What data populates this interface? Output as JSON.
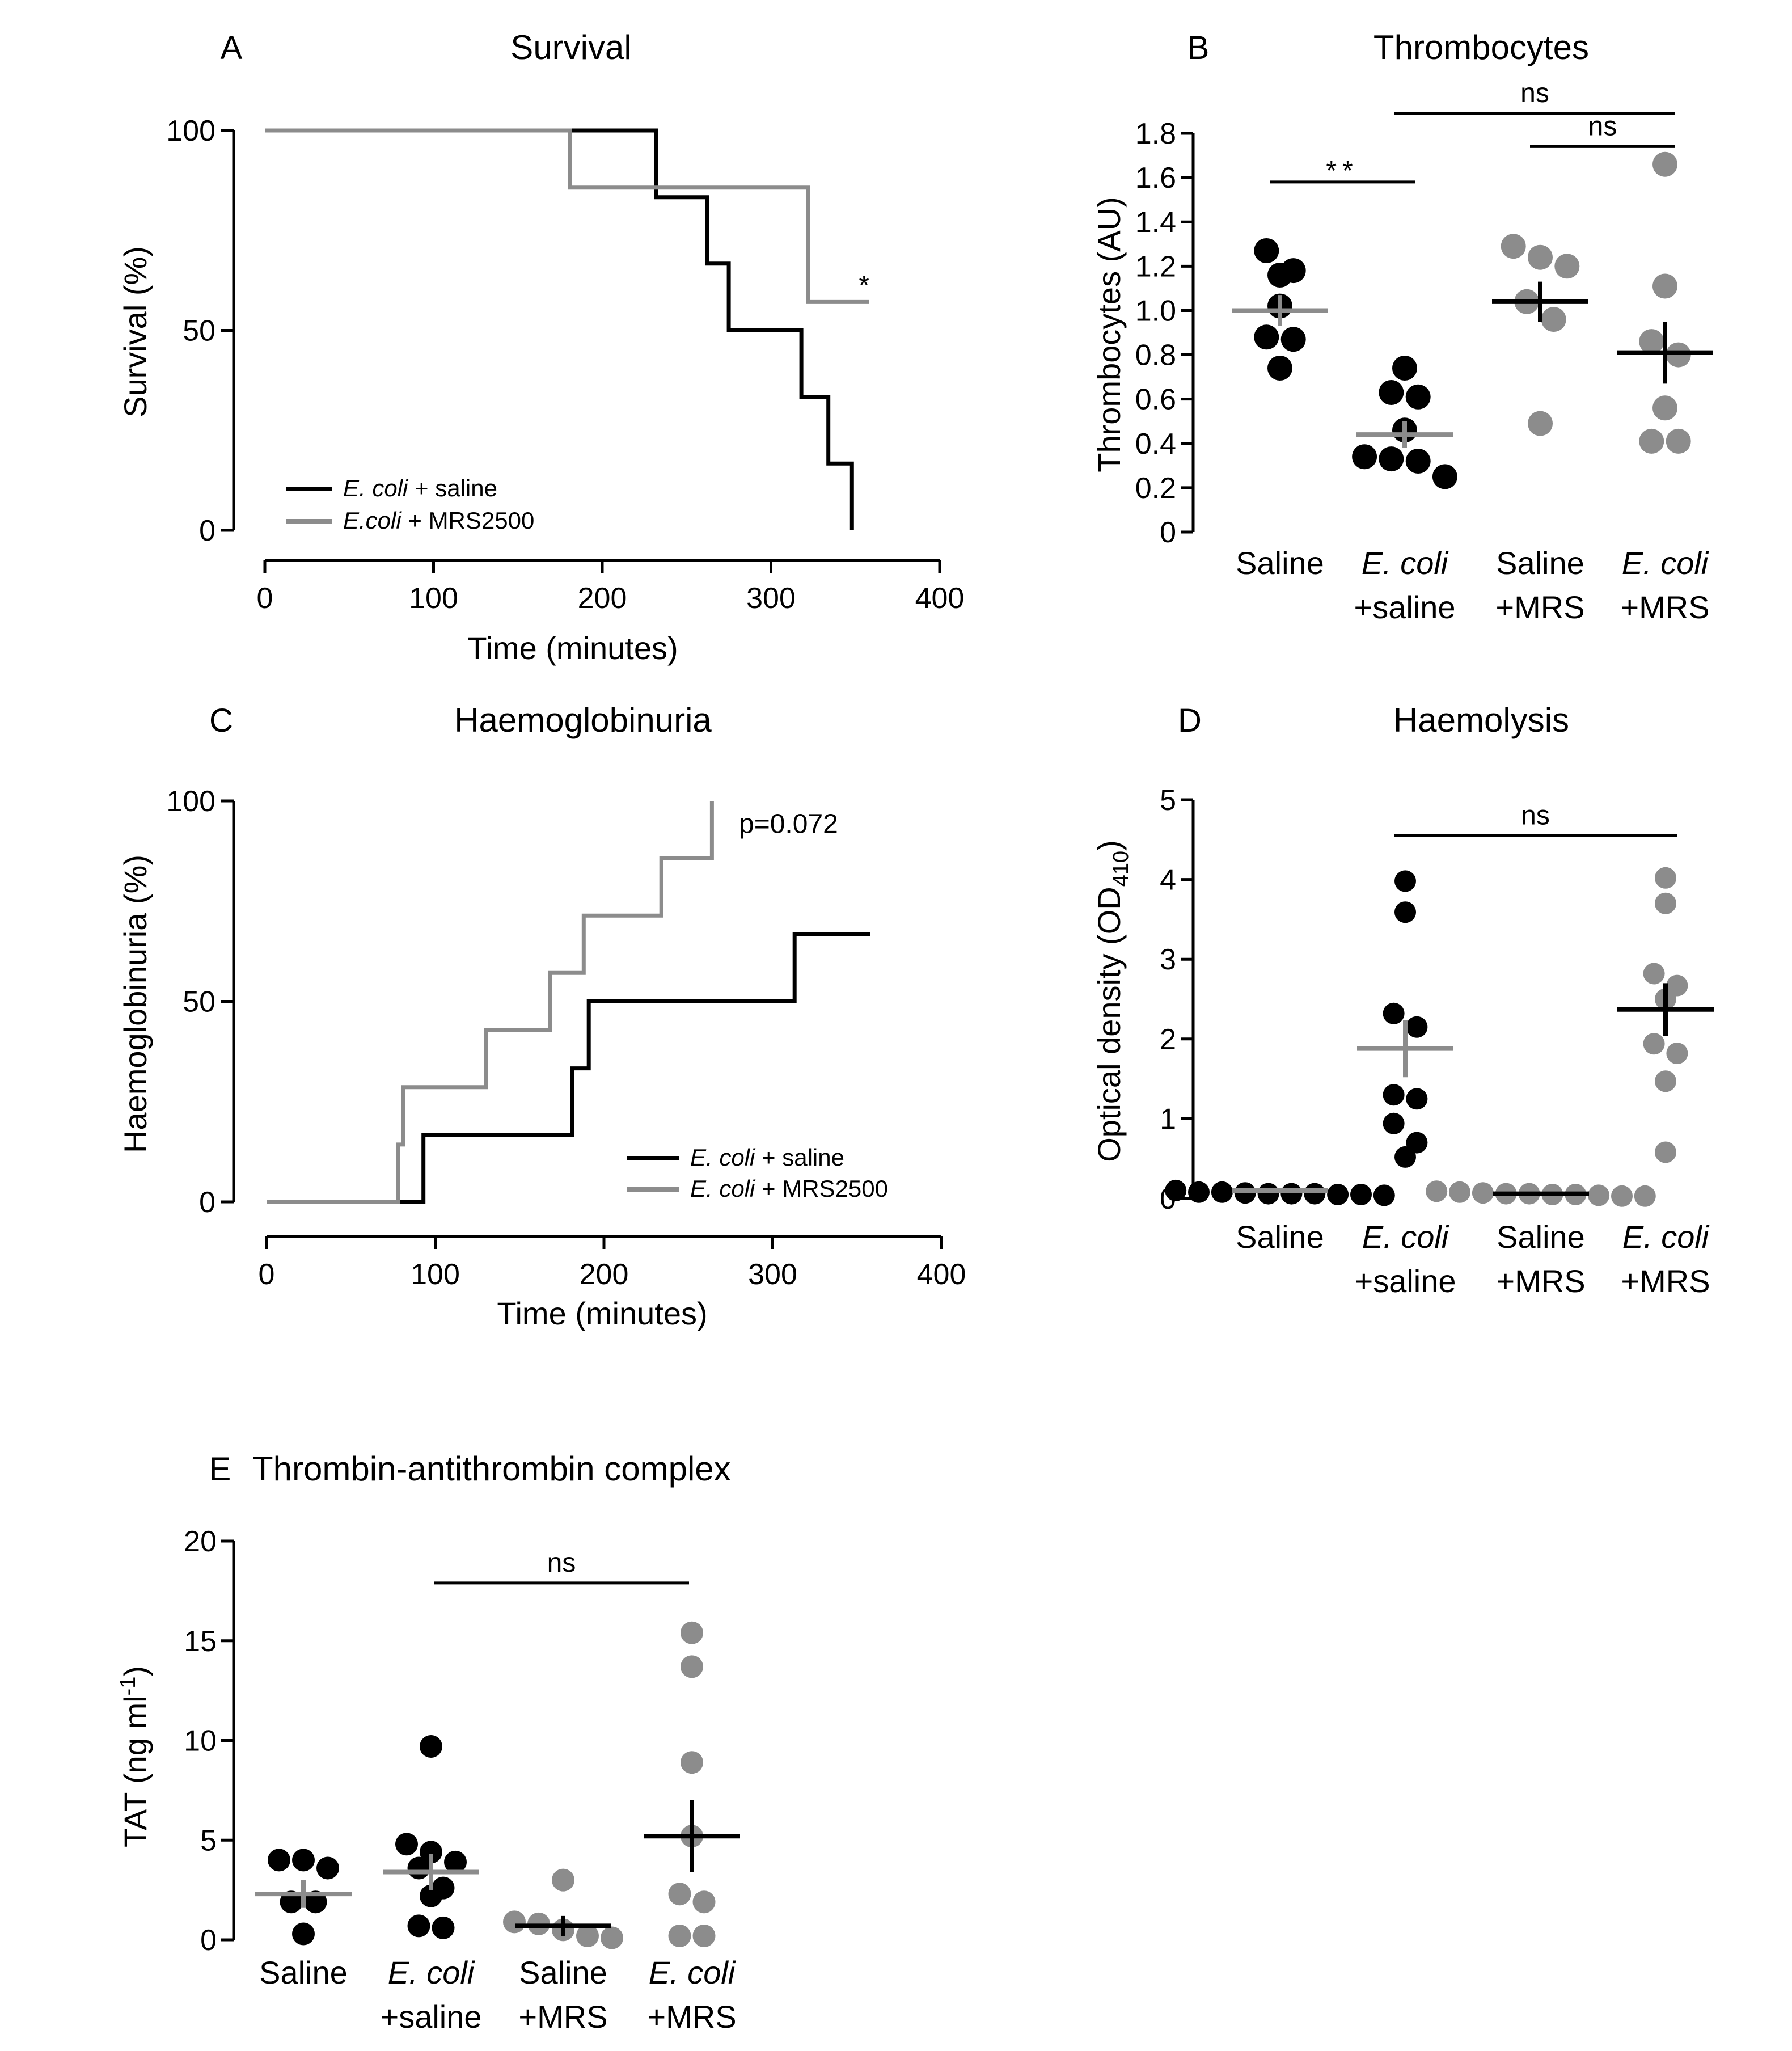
{
  "colors": {
    "black": "#000000",
    "gray": "#8c8c8c"
  },
  "chart_data": [
    {
      "panel": "A",
      "type": "line",
      "title": "Survival",
      "xlabel": "Time (minutes)",
      "ylabel": "Survival (%)",
      "xlim": [
        0,
        400
      ],
      "ylim": [
        0,
        100
      ],
      "xticks": [
        0,
        100,
        200,
        300,
        400
      ],
      "yticks": [
        0,
        50,
        100
      ],
      "legend": {
        "position": "bottom-left"
      },
      "annotation": {
        "text": "*",
        "x": 352,
        "y": 59
      },
      "series": [
        {
          "name_em": "E. coli",
          "name_rest": " + saline",
          "color": "#000000",
          "steps": [
            [
              0,
              100
            ],
            [
              232,
              100
            ],
            [
              232,
              83.3
            ],
            [
              262,
              83.3
            ],
            [
              262,
              66.7
            ],
            [
              275,
              66.7
            ],
            [
              275,
              50
            ],
            [
              318,
              50
            ],
            [
              318,
              33.3
            ],
            [
              334,
              33.3
            ],
            [
              334,
              16.7
            ],
            [
              348,
              16.7
            ],
            [
              348,
              0
            ]
          ]
        },
        {
          "name_em": "E.coli",
          "name_rest": " + MRS2500",
          "color": "#8c8c8c",
          "steps": [
            [
              0,
              100
            ],
            [
              181,
              100
            ],
            [
              181,
              85.7
            ],
            [
              322,
              85.7
            ],
            [
              322,
              57.1
            ],
            [
              358,
              57.1
            ]
          ]
        }
      ]
    },
    {
      "panel": "B",
      "type": "scatter",
      "title": "Thrombocytes",
      "ylabel": "Thrombocytes (AU)",
      "ylim": [
        0,
        1.8
      ],
      "yticks": [
        "0",
        "0.2",
        "0.4",
        "0.6",
        "0.8",
        "1.0",
        "1.2",
        "1.4",
        "1.6",
        "1.8"
      ],
      "categories": [
        {
          "line1": "Saline",
          "line2": "",
          "italic": false
        },
        {
          "line1": "E. coli",
          "line2": "+saline",
          "italic": true
        },
        {
          "line1": "Saline",
          "line2": "+MRS",
          "italic": false
        },
        {
          "line1": "E. coli",
          "line2": "+MRS",
          "italic": true
        }
      ],
      "groups": [
        {
          "color": "#000000",
          "mean_color": "#8c8c8c",
          "mean": 1.0,
          "sem": 0.07,
          "points": [
            1.27,
            1.18,
            1.16,
            1.02,
            0.88,
            0.87,
            0.74
          ]
        },
        {
          "color": "#000000",
          "mean_color": "#8c8c8c",
          "mean": 0.44,
          "sem": 0.06,
          "points": [
            0.74,
            0.63,
            0.61,
            0.46,
            0.34,
            0.33,
            0.32,
            0.25
          ]
        },
        {
          "color": "#8c8c8c",
          "mean_color": "#000000",
          "mean": 1.04,
          "sem": 0.09,
          "points": [
            1.29,
            1.24,
            1.2,
            1.04,
            0.96,
            0.49
          ]
        },
        {
          "color": "#8c8c8c",
          "mean_color": "#000000",
          "mean": 0.81,
          "sem": 0.14,
          "points": [
            1.66,
            1.11,
            0.86,
            0.8,
            0.56,
            0.41,
            0.41
          ]
        }
      ],
      "significance": [
        {
          "from": 0,
          "to": 1,
          "label": "**",
          "y": 1.58
        },
        {
          "from": 1,
          "to": 3,
          "label": "ns",
          "y": 1.89
        },
        {
          "from": 2,
          "to": 3,
          "label": "ns",
          "y": 1.74
        }
      ]
    },
    {
      "panel": "C",
      "type": "line",
      "title": "Haemoglobinuria",
      "xlabel": "Time (minutes)",
      "ylabel": "Haemoglobinuria (%)",
      "xlim": [
        0,
        400
      ],
      "ylim": [
        0,
        100
      ],
      "xticks": [
        0,
        100,
        200,
        300,
        400
      ],
      "yticks": [
        0,
        50,
        100
      ],
      "legend": {
        "position": "bottom-right"
      },
      "annotation": {
        "text": "p=0.072",
        "x": 280,
        "y": 92
      },
      "series": [
        {
          "name_em": "E. coli",
          "name_rest": " + saline",
          "color": "#000000",
          "steps": [
            [
              0,
              0
            ],
            [
              93,
              0
            ],
            [
              93,
              16.7
            ],
            [
              181,
              16.7
            ],
            [
              181,
              33.3
            ],
            [
              191,
              33.3
            ],
            [
              191,
              50
            ],
            [
              313,
              50
            ],
            [
              313,
              66.7
            ],
            [
              358,
              66.7
            ]
          ]
        },
        {
          "name_em": "E. coli",
          "name_rest": " + MRS2500",
          "color": "#8c8c8c",
          "steps": [
            [
              0,
              0
            ],
            [
              78,
              0
            ],
            [
              78,
              14.3
            ],
            [
              81,
              14.3
            ],
            [
              81,
              28.6
            ],
            [
              130,
              28.6
            ],
            [
              130,
              42.9
            ],
            [
              168,
              42.9
            ],
            [
              168,
              57.1
            ],
            [
              188,
              57.1
            ],
            [
              188,
              71.4
            ],
            [
              234,
              71.4
            ],
            [
              234,
              85.7
            ],
            [
              264,
              85.7
            ],
            [
              264,
              100
            ]
          ]
        }
      ]
    },
    {
      "panel": "D",
      "type": "scatter",
      "title": "Haemolysis",
      "ylabel_main": "Optical density (OD",
      "ylabel_sub": "410",
      "ylabel_close": ")",
      "ylim": [
        0,
        5
      ],
      "yticks": [
        "0",
        "1",
        "2",
        "3",
        "4",
        "5"
      ],
      "categories": [
        {
          "line1": "Saline",
          "line2": "",
          "italic": false
        },
        {
          "line1": "E. coli",
          "line2": "+saline",
          "italic": true
        },
        {
          "line1": "Saline",
          "line2": "+MRS",
          "italic": false
        },
        {
          "line1": "E. coli",
          "line2": "+MRS",
          "italic": true
        }
      ],
      "groups": [
        {
          "color": "#000000",
          "mean_color": "#8c8c8c",
          "mean": 0.1,
          "sem": 0.02,
          "points": [
            0.1,
            0.08,
            0.08,
            0.07,
            0.06,
            0.06,
            0.06,
            0.05,
            0.05,
            0.04
          ]
        },
        {
          "color": "#000000",
          "mean_color": "#8c8c8c",
          "mean": 1.88,
          "sem": 0.36,
          "points": [
            3.98,
            3.59,
            2.32,
            2.15,
            1.3,
            1.25,
            0.94,
            0.7,
            0.52
          ]
        },
        {
          "color": "#8c8c8c",
          "mean_color": "#000000",
          "mean": 0.06,
          "sem": 0.01,
          "points": [
            0.09,
            0.08,
            0.07,
            0.06,
            0.06,
            0.05,
            0.05,
            0.04,
            0.03,
            0.03
          ]
        },
        {
          "color": "#8c8c8c",
          "mean_color": "#000000",
          "mean": 2.37,
          "sem": 0.33,
          "points": [
            4.02,
            3.7,
            2.82,
            2.67,
            2.5,
            1.94,
            1.82,
            1.47,
            0.58
          ]
        }
      ],
      "significance": [
        {
          "from": 1,
          "to": 3,
          "label": "ns",
          "y": 4.55
        }
      ]
    },
    {
      "panel": "E",
      "type": "scatter",
      "title": "Thrombin-antithrombin complex",
      "ylabel_main": "TAT (ng ml",
      "ylabel_sup": "-1",
      "ylabel_close": ")",
      "ylim": [
        0,
        20
      ],
      "yticks": [
        "0",
        "5",
        "10",
        "15",
        "20"
      ],
      "categories": [
        {
          "line1": "Saline",
          "line2": "",
          "italic": false
        },
        {
          "line1": "E. coli",
          "line2": "+saline",
          "italic": true
        },
        {
          "line1": "Saline",
          "line2": "+MRS",
          "italic": false
        },
        {
          "line1": "E. coli",
          "line2": "+MRS",
          "italic": true
        }
      ],
      "groups": [
        {
          "color": "#000000",
          "mean_color": "#8c8c8c",
          "mean": 2.3,
          "sem": 0.7,
          "points": [
            4.0,
            4.0,
            3.6,
            1.9,
            1.9,
            0.3
          ]
        },
        {
          "color": "#000000",
          "mean_color": "#8c8c8c",
          "mean": 3.4,
          "sem": 0.9,
          "points": [
            9.7,
            4.8,
            4.4,
            3.9,
            3.6,
            2.6,
            2.2,
            0.7,
            0.6
          ]
        },
        {
          "color": "#8c8c8c",
          "mean_color": "#000000",
          "mean": 0.7,
          "sem": 0.5,
          "points": [
            3.0,
            0.9,
            0.8,
            0.5,
            0.2,
            0.1
          ]
        },
        {
          "color": "#8c8c8c",
          "mean_color": "#000000",
          "mean": 5.2,
          "sem": 1.8,
          "points": [
            15.4,
            13.7,
            8.9,
            5.2,
            2.3,
            1.9,
            0.2,
            0.2
          ]
        }
      ],
      "significance": [
        {
          "from": 1,
          "to": 3,
          "label": "ns",
          "y": 17.9
        }
      ]
    }
  ]
}
